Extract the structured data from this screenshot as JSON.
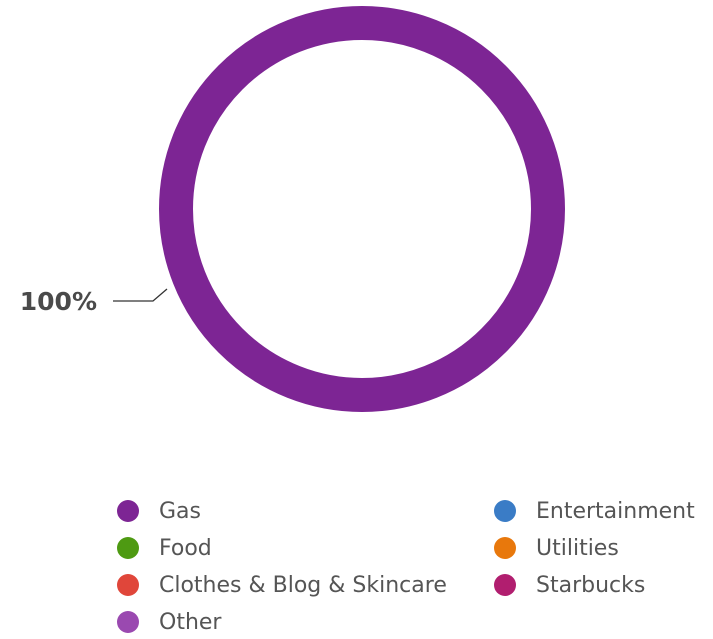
{
  "chart_data": {
    "type": "pie",
    "donut": true,
    "categories": [
      "Gas",
      "Food",
      "Clothes & Blog & Skincare",
      "Other",
      "Entertainment",
      "Utilities",
      "Starbucks"
    ],
    "values": [
      100,
      0,
      0,
      0,
      0,
      0,
      0
    ],
    "slice_labels": [
      "100%"
    ],
    "colors": [
      "#7d2594",
      "#4e9a12",
      "#e0463a",
      "#9a49b0",
      "#3a7cc6",
      "#e8780c",
      "#b11e6f"
    ],
    "legend_placement": "bottom",
    "legend": [
      {
        "label": "Gas",
        "color": "#7d2594"
      },
      {
        "label": "Food",
        "color": "#4e9a12"
      },
      {
        "label": "Clothes & Blog & Skincare",
        "color": "#e0463a"
      },
      {
        "label": "Other",
        "color": "#9a49b0"
      },
      {
        "label": "Entertainment",
        "color": "#3a7cc6"
      },
      {
        "label": "Utilities",
        "color": "#e8780c"
      },
      {
        "label": "Starbucks",
        "color": "#b11e6f"
      }
    ]
  }
}
